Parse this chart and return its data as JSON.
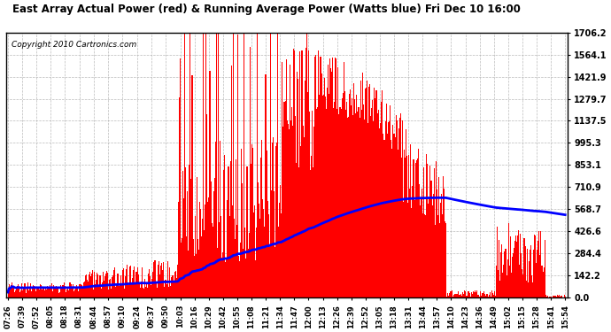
{
  "title": "East Array Actual Power (red) & Running Average Power (Watts blue) Fri Dec 10 16:00",
  "copyright_text": "Copyright 2010 Cartronics.com",
  "bg_color": "#ffffff",
  "plot_bg_color": "#ffffff",
  "grid_color": "#aaaaaa",
  "bar_color": "#ff0000",
  "avg_color": "#0000ff",
  "ytick_labels": [
    "0.0",
    "142.2",
    "284.4",
    "426.6",
    "568.7",
    "710.9",
    "853.1",
    "995.3",
    "1137.5",
    "1279.7",
    "1421.9",
    "1564.1",
    "1706.2"
  ],
  "ytick_values": [
    0.0,
    142.2,
    284.4,
    426.6,
    568.7,
    710.9,
    853.1,
    995.3,
    1137.5,
    1279.7,
    1421.9,
    1564.1,
    1706.2
  ],
  "ymax": 1706.2,
  "xtick_labels": [
    "07:26",
    "07:39",
    "07:52",
    "08:05",
    "08:18",
    "08:31",
    "08:44",
    "08:57",
    "09:10",
    "09:24",
    "09:37",
    "09:50",
    "10:03",
    "10:16",
    "10:29",
    "10:42",
    "10:55",
    "11:08",
    "11:21",
    "11:34",
    "11:47",
    "12:00",
    "12:13",
    "12:26",
    "12:39",
    "12:52",
    "13:05",
    "13:18",
    "13:31",
    "13:44",
    "13:57",
    "14:10",
    "14:23",
    "14:36",
    "14:49",
    "15:02",
    "15:15",
    "15:28",
    "15:41",
    "15:54"
  ]
}
